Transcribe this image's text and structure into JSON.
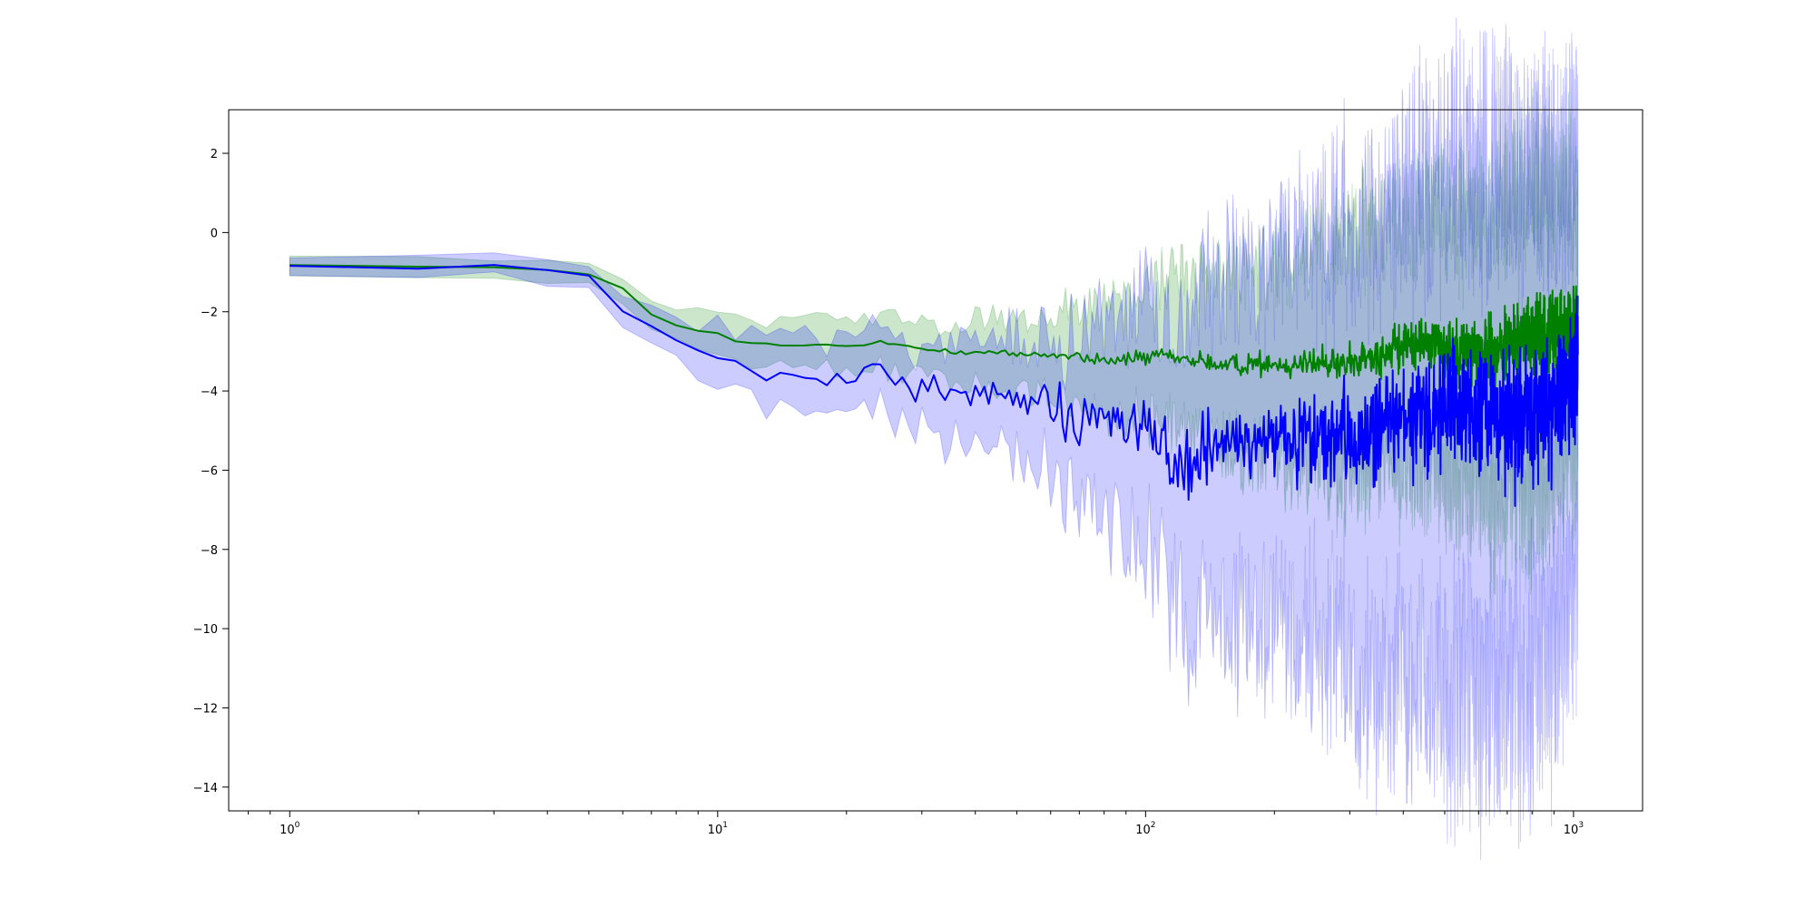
{
  "chart_data": {
    "type": "line",
    "title": "",
    "xlabel": "",
    "ylabel": "",
    "xscale": "log",
    "xlim": [
      0.72,
      1450
    ],
    "ylim": [
      -14.6,
      3.1
    ],
    "grid": false,
    "x_ticks": [
      {
        "value": 1,
        "label": "10",
        "exp": "0"
      },
      {
        "value": 10,
        "label": "10",
        "exp": "1"
      },
      {
        "value": 100,
        "label": "10",
        "exp": "2"
      },
      {
        "value": 1000,
        "label": "10",
        "exp": "3"
      }
    ],
    "y_ticks": [
      {
        "value": 2,
        "label": "2"
      },
      {
        "value": 0,
        "label": "0"
      },
      {
        "value": -2,
        "label": "−2"
      },
      {
        "value": -4,
        "label": "−4"
      },
      {
        "value": -6,
        "label": "−6"
      },
      {
        "value": -8,
        "label": "−8"
      },
      {
        "value": -10,
        "label": "−10"
      },
      {
        "value": -12,
        "label": "−12"
      },
      {
        "value": -14,
        "label": "−14"
      }
    ],
    "x_range": [
      1,
      1024
    ],
    "series": [
      {
        "color": "#008000",
        "band_color": "#008000",
        "band_opacity": 0.2,
        "mean_anchors": [
          [
            1,
            -0.82
          ],
          [
            3,
            -0.88
          ],
          [
            4,
            -0.95
          ],
          [
            5,
            -1.07
          ],
          [
            6,
            -1.4
          ],
          [
            7,
            -2.05
          ],
          [
            8,
            -2.35
          ],
          [
            9,
            -2.5
          ],
          [
            10,
            -2.55
          ],
          [
            11,
            -2.75
          ],
          [
            14,
            -2.85
          ],
          [
            22,
            -2.85
          ],
          [
            24,
            -2.75
          ],
          [
            30,
            -2.95
          ],
          [
            60,
            -3.1
          ],
          [
            80,
            -3.2
          ],
          [
            110,
            -3.15
          ],
          [
            150,
            -3.35
          ],
          [
            200,
            -3.3
          ],
          [
            300,
            -3.3
          ],
          [
            450,
            -2.75
          ],
          [
            600,
            -3.05
          ],
          [
            800,
            -2.65
          ],
          [
            1024,
            -2.35
          ]
        ],
        "mean_noise": [
          [
            1,
            0
          ],
          [
            20,
            0.02
          ],
          [
            50,
            0.05
          ],
          [
            100,
            0.1
          ],
          [
            200,
            0.15
          ],
          [
            400,
            0.3
          ],
          [
            700,
            0.45
          ],
          [
            1024,
            0.55
          ]
        ],
        "band_upper_offset": [
          [
            1,
            0.2
          ],
          [
            5,
            0.28
          ],
          [
            7,
            0.42
          ],
          [
            10,
            0.55
          ],
          [
            30,
            0.65
          ],
          [
            50,
            0.9
          ],
          [
            80,
            1.4
          ],
          [
            150,
            2.4
          ],
          [
            250,
            2.9
          ],
          [
            400,
            3.4
          ],
          [
            600,
            3.6
          ],
          [
            800,
            3.9
          ],
          [
            1024,
            3.4
          ]
        ],
        "band_lower_offset": [
          [
            1,
            0.2
          ],
          [
            5,
            0.25
          ],
          [
            7,
            0.35
          ],
          [
            10,
            0.45
          ],
          [
            30,
            0.7
          ],
          [
            60,
            1.0
          ],
          [
            100,
            1.5
          ],
          [
            200,
            2.4
          ],
          [
            400,
            3.2
          ],
          [
            600,
            3.6
          ],
          [
            800,
            4.2
          ],
          [
            1024,
            3.2
          ]
        ]
      },
      {
        "color": "#0000ff",
        "band_color": "#0000ff",
        "band_opacity": 0.2,
        "mean_anchors": [
          [
            1,
            -0.84
          ],
          [
            3,
            -0.9
          ],
          [
            4,
            -0.98
          ],
          [
            5,
            -1.17
          ],
          [
            6,
            -1.95
          ],
          [
            7,
            -2.5
          ],
          [
            8,
            -2.8
          ],
          [
            9,
            -2.95
          ],
          [
            10,
            -3.1
          ],
          [
            11,
            -3.4
          ],
          [
            14,
            -3.6
          ],
          [
            20,
            -3.7
          ],
          [
            23,
            -3.5
          ],
          [
            30,
            -3.9
          ],
          [
            50,
            -4.2
          ],
          [
            70,
            -4.6
          ],
          [
            100,
            -4.8
          ],
          [
            120,
            -5.9
          ],
          [
            160,
            -5.2
          ],
          [
            200,
            -5.3
          ],
          [
            300,
            -5.2
          ],
          [
            400,
            -4.8
          ],
          [
            500,
            -4.5
          ],
          [
            700,
            -4.7
          ],
          [
            900,
            -4.4
          ],
          [
            1024,
            -3.2
          ]
        ],
        "mean_noise": [
          [
            1,
            0
          ],
          [
            20,
            0.12
          ],
          [
            40,
            0.22
          ],
          [
            70,
            0.35
          ],
          [
            120,
            0.45
          ],
          [
            200,
            0.5
          ],
          [
            300,
            0.6
          ],
          [
            500,
            0.75
          ],
          [
            1024,
            0.9
          ]
        ],
        "band_upper_offset": [
          [
            1,
            0.22
          ],
          [
            5,
            0.3
          ],
          [
            7,
            0.55
          ],
          [
            10,
            0.8
          ],
          [
            30,
            1.1
          ],
          [
            60,
            1.7
          ],
          [
            100,
            3.2
          ],
          [
            200,
            4.4
          ],
          [
            300,
            5.2
          ],
          [
            500,
            6.0
          ],
          [
            700,
            6.4
          ],
          [
            1024,
            5.5
          ]
        ],
        "band_lower_offset": [
          [
            1,
            0.2
          ],
          [
            5,
            0.3
          ],
          [
            7,
            0.5
          ],
          [
            10,
            0.6
          ],
          [
            20,
            0.9
          ],
          [
            40,
            1.2
          ],
          [
            60,
            1.8
          ],
          [
            100,
            3.1
          ],
          [
            150,
            4.4
          ],
          [
            250,
            5.0
          ],
          [
            350,
            6.2
          ],
          [
            500,
            7.0
          ],
          [
            700,
            7.2
          ],
          [
            1024,
            5.5
          ]
        ]
      }
    ]
  }
}
